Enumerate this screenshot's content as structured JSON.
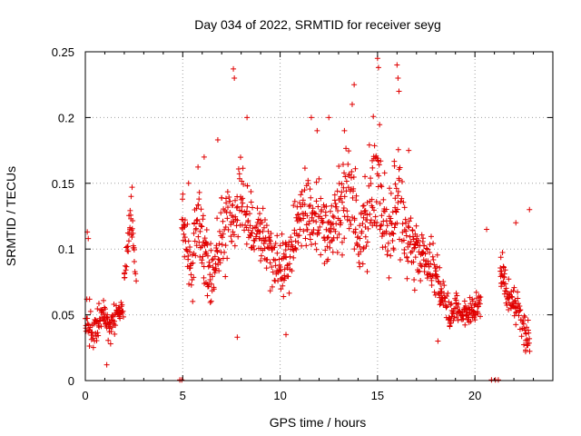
{
  "chart_data": {
    "type": "scatter",
    "title": "Day 034 of 2022, SRMTID for receiver seyg",
    "xlabel": "GPS time / hours",
    "ylabel": "SRMTID / TECUs",
    "xlim": [
      0,
      24
    ],
    "ylim": [
      0,
      0.25
    ],
    "xticks": [
      0,
      5,
      10,
      15,
      20
    ],
    "xtick_labels": [
      "0",
      "5",
      "10",
      "15",
      "20"
    ],
    "yticks": [
      0,
      0.05,
      0.1,
      0.15,
      0.2,
      0.25
    ],
    "ytick_labels": [
      "0",
      "0.05",
      "0.1",
      "0.15",
      "0.2",
      "0.25"
    ],
    "grid": true,
    "marker": "+",
    "color": "#e00000",
    "series": [
      {
        "name": "SRMTID",
        "segments": [
          {
            "x": [
              0.0,
              0.2,
              0.4,
              0.6,
              0.8,
              1.0,
              1.2,
              1.4,
              1.6,
              1.8,
              1.95
            ],
            "y": [
              0.048,
              0.045,
              0.04,
              0.042,
              0.05,
              0.045,
              0.04,
              0.043,
              0.05,
              0.055,
              0.05
            ],
            "spread": [
              0.008,
              0.015,
              0.012,
              0.012,
              0.01,
              0.01,
              0.012,
              0.012,
              0.012,
              0.008,
              0.006
            ]
          },
          {
            "x": [
              2.0,
              2.15,
              2.3,
              2.45,
              2.6
            ],
            "y": [
              0.075,
              0.1,
              0.125,
              0.11,
              0.075
            ],
            "spread": [
              0.01,
              0.012,
              0.012,
              0.015,
              0.01
            ]
          },
          {
            "x": [
              4.95,
              5.2,
              5.5,
              5.8,
              6.1,
              6.5,
              7.0,
              7.5,
              8.0,
              8.5,
              9.0,
              9.5,
              10.0,
              10.5,
              11.0,
              11.5,
              12.0,
              12.5,
              13.0,
              13.5,
              14.0,
              14.5,
              15.0,
              15.5,
              16.0,
              16.5,
              17.0,
              17.5,
              17.9
            ],
            "y": [
              0.12,
              0.1,
              0.085,
              0.13,
              0.095,
              0.075,
              0.11,
              0.125,
              0.14,
              0.12,
              0.11,
              0.095,
              0.085,
              0.09,
              0.13,
              0.12,
              0.125,
              0.115,
              0.135,
              0.15,
              0.105,
              0.125,
              0.15,
              0.11,
              0.13,
              0.11,
              0.1,
              0.095,
              0.075
            ],
            "spread": [
              0.02,
              0.025,
              0.02,
              0.03,
              0.025,
              0.02,
              0.03,
              0.03,
              0.035,
              0.03,
              0.025,
              0.025,
              0.022,
              0.02,
              0.03,
              0.03,
              0.028,
              0.03,
              0.035,
              0.04,
              0.03,
              0.035,
              0.05,
              0.03,
              0.04,
              0.025,
              0.025,
              0.02,
              0.02
            ]
          },
          {
            "x": [
              17.9,
              18.3,
              18.7,
              19.1,
              19.5,
              19.9,
              20.3
            ],
            "y": [
              0.08,
              0.07,
              0.05,
              0.055,
              0.05,
              0.055,
              0.06
            ],
            "spread": [
              0.015,
              0.015,
              0.01,
              0.012,
              0.01,
              0.012,
              0.012
            ]
          },
          {
            "x": [
              21.3,
              21.6,
              21.9,
              22.2,
              22.5,
              22.8
            ],
            "y": [
              0.085,
              0.07,
              0.06,
              0.055,
              0.04,
              0.03
            ],
            "spread": [
              0.012,
              0.012,
              0.012,
              0.012,
              0.012,
              0.01
            ]
          }
        ],
        "highlights": [
          {
            "x": 7.6,
            "y": 0.237
          },
          {
            "x": 7.65,
            "y": 0.23
          },
          {
            "x": 8.3,
            "y": 0.2
          },
          {
            "x": 11.6,
            "y": 0.2
          },
          {
            "x": 11.9,
            "y": 0.19
          },
          {
            "x": 12.5,
            "y": 0.2
          },
          {
            "x": 13.3,
            "y": 0.19
          },
          {
            "x": 13.8,
            "y": 0.225
          },
          {
            "x": 13.7,
            "y": 0.21
          },
          {
            "x": 15.0,
            "y": 0.245
          },
          {
            "x": 15.05,
            "y": 0.238
          },
          {
            "x": 16.0,
            "y": 0.24
          },
          {
            "x": 16.05,
            "y": 0.23
          },
          {
            "x": 16.1,
            "y": 0.22
          },
          {
            "x": 0.1,
            "y": 0.113
          },
          {
            "x": 0.15,
            "y": 0.108
          },
          {
            "x": 2.4,
            "y": 0.147
          },
          {
            "x": 2.35,
            "y": 0.14
          },
          {
            "x": 7.8,
            "y": 0.033
          },
          {
            "x": 10.3,
            "y": 0.035
          },
          {
            "x": 1.1,
            "y": 0.012
          },
          {
            "x": 5.3,
            "y": 0.15
          },
          {
            "x": 6.1,
            "y": 0.17
          },
          {
            "x": 6.8,
            "y": 0.183
          },
          {
            "x": 20.6,
            "y": 0.115
          },
          {
            "x": 22.8,
            "y": 0.13
          },
          {
            "x": 22.1,
            "y": 0.12
          },
          {
            "x": 22.6,
            "y": 0.022
          },
          {
            "x": 18.1,
            "y": 0.03
          },
          {
            "x": 16.6,
            "y": 0.175
          }
        ],
        "zero_points": [
          4.85,
          4.95,
          20.85,
          21.05,
          21.2
        ]
      }
    ]
  }
}
